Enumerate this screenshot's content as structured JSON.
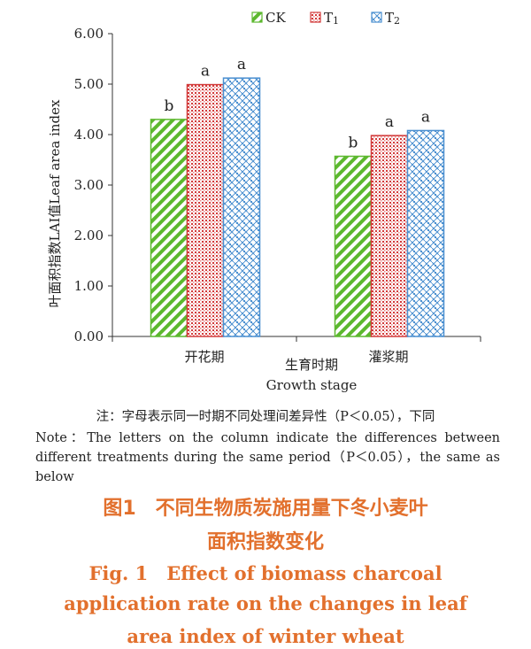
{
  "chart_data": {
    "type": "bar",
    "categories": [
      "开花期",
      "灌浆期"
    ],
    "series": [
      {
        "name": "CK",
        "values": [
          4.3,
          3.57
        ],
        "letters": [
          "b",
          "b"
        ]
      },
      {
        "name": "T1",
        "values": [
          4.99,
          3.98
        ],
        "letters": [
          "a",
          "a"
        ]
      },
      {
        "name": "T2",
        "values": [
          5.12,
          4.08
        ],
        "letters": [
          "a",
          "a"
        ]
      }
    ],
    "ylabel": "叶面积指数LAI值Leaf area index",
    "xlabel_cn": "生育时期",
    "xlabel_en": "Growth stage",
    "ylim": [
      0,
      6
    ],
    "yticks": [
      "0.00",
      "1.00",
      "2.00",
      "3.00",
      "4.00",
      "5.00",
      "6.00"
    ],
    "legend_position": "top-right",
    "grid": false,
    "colors": {
      "CK": "#5cb82e",
      "T1": "#d23a3a",
      "T2": "#4a8fd0"
    }
  },
  "notes": {
    "cn": "注：字母表示同一时期不同处理间差异性（P＜0.05），下同",
    "en": "Note：The letters on the column indicate the differences between different treatments during the same period（P＜0.05），the same as below"
  },
  "caption": {
    "cn_line1": "图1　不同生物质炭施用量下冬小麦叶",
    "cn_line2": "面积指数变化",
    "en_line1": "Fig. 1　Effect of biomass charcoal",
    "en_line2": "application rate on the changes in leaf",
    "en_line3": "area index of winter wheat"
  }
}
